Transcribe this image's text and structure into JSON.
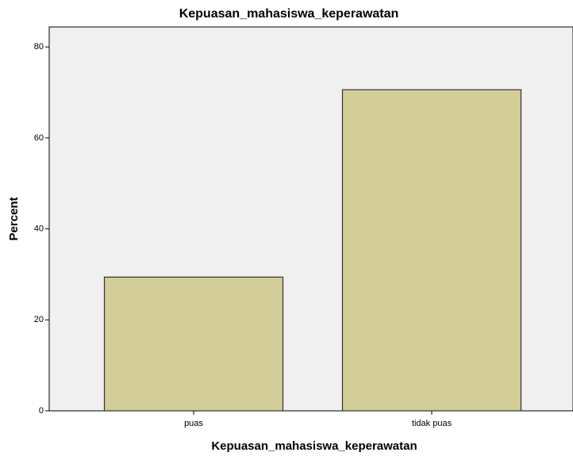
{
  "chart_data": {
    "type": "bar",
    "title": "Kepuasan_mahasiswa_keperawatan",
    "x_label": "Kepuasan_mahasiswa_keperawatan",
    "y_label": "Percent",
    "categories": [
      "puas",
      "tidak puas"
    ],
    "values": [
      29.4,
      70.6
    ],
    "color": "#d3ce97",
    "ylim": [
      0,
      84.4
    ],
    "yticks": [
      0,
      20,
      40,
      60,
      80
    ],
    "grid": false
  }
}
